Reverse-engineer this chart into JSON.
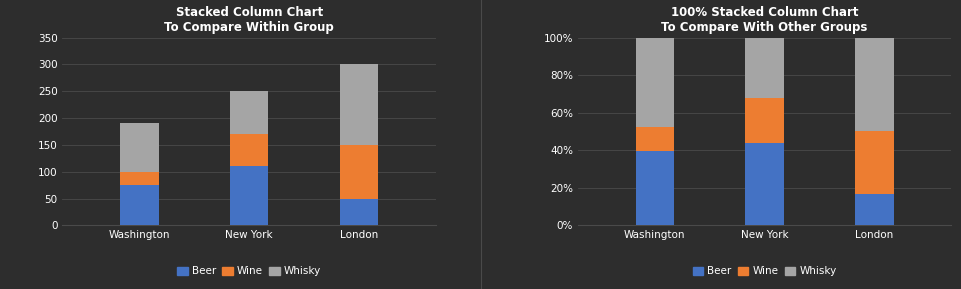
{
  "categories": [
    "Washington",
    "New York",
    "London"
  ],
  "beer": [
    75,
    110,
    50
  ],
  "wine": [
    25,
    60,
    100
  ],
  "whisky": [
    90,
    80,
    150
  ],
  "colors": {
    "beer": "#4472c4",
    "wine": "#ed7d31",
    "whisky": "#a5a5a5"
  },
  "bg_color": "#2d2d2d",
  "text_color": "#ffffff",
  "grid_color": "#4a4a4a",
  "title1": "Stacked Column Chart\nTo Compare Within Group",
  "title2": "100% Stacked Column Chart\nTo Compare With Other Groups",
  "ylim1": [
    0,
    350
  ],
  "yticks1": [
    0,
    50,
    100,
    150,
    200,
    250,
    300,
    350
  ],
  "bar_width": 0.35,
  "legend_labels": [
    "Beer",
    "Wine",
    "Whisky"
  ]
}
